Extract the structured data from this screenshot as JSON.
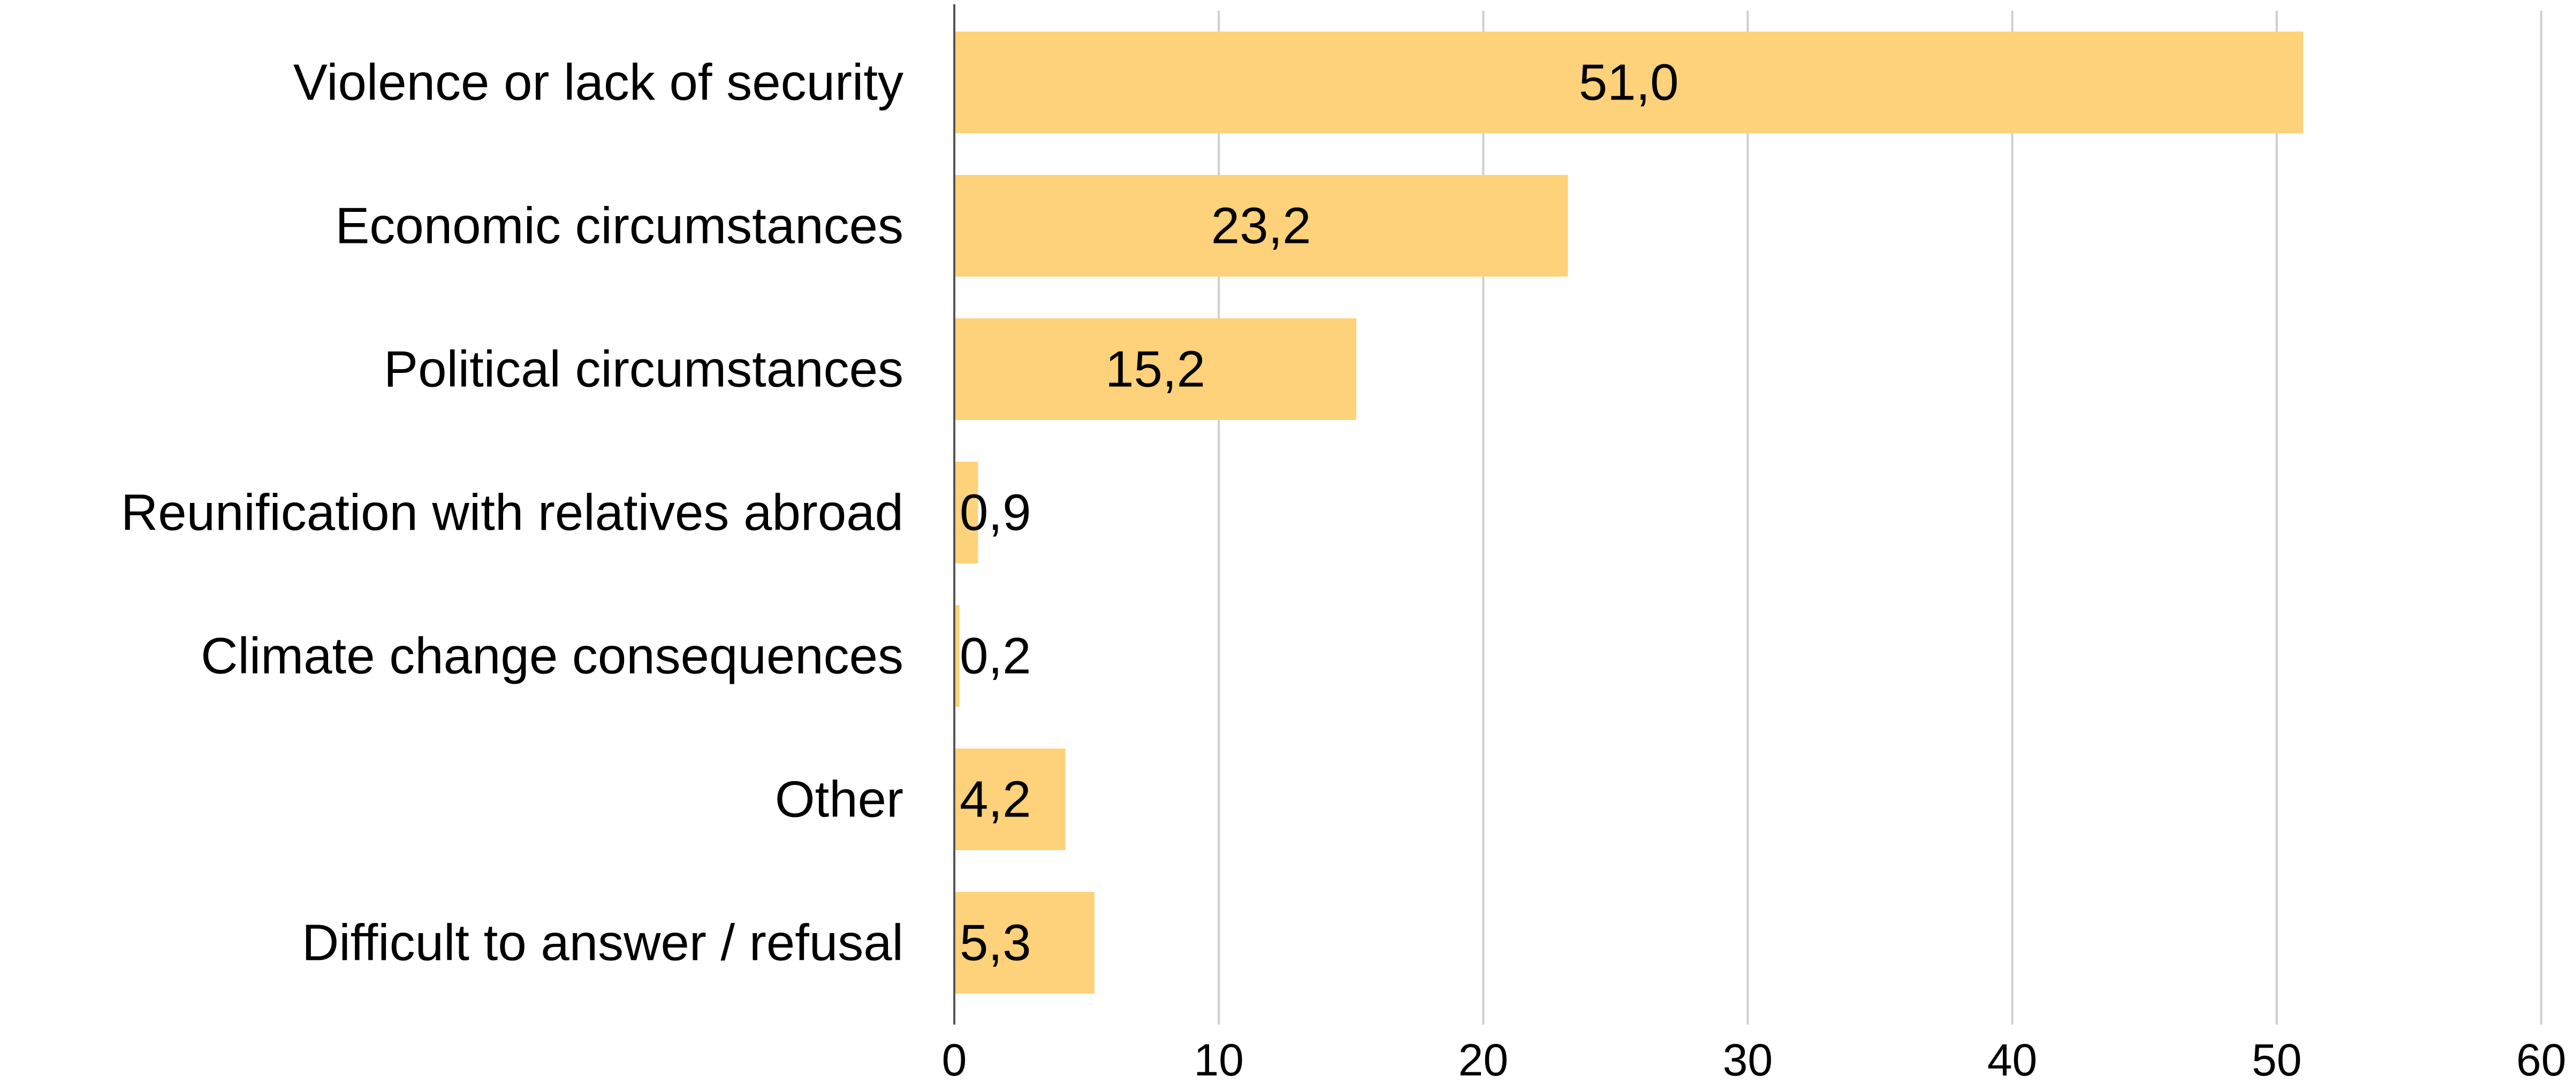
{
  "chart_data": {
    "type": "bar",
    "orientation": "horizontal",
    "categories": [
      "Violence or lack of security",
      "Economic circumstances",
      "Political circumstances",
      "Reunification with relatives abroad",
      "Climate change consequences",
      "Other",
      "Difficult to answer / refusal"
    ],
    "values": [
      51.0,
      23.2,
      15.2,
      0.9,
      0.2,
      4.2,
      5.3
    ],
    "value_labels": [
      "51,0",
      "23,2",
      "15,2",
      "0,9",
      "0,2",
      "4,2",
      "5,3"
    ],
    "xlim": [
      0,
      60
    ],
    "x_ticks": [
      0,
      10,
      20,
      30,
      40,
      50,
      60
    ],
    "x_tick_labels": [
      "0",
      "10",
      "20",
      "30",
      "40",
      "50",
      "60"
    ],
    "grid": "vertical",
    "legend": "none",
    "title": "",
    "xlabel": "",
    "ylabel": "",
    "bar_color": "#FDD27A"
  }
}
